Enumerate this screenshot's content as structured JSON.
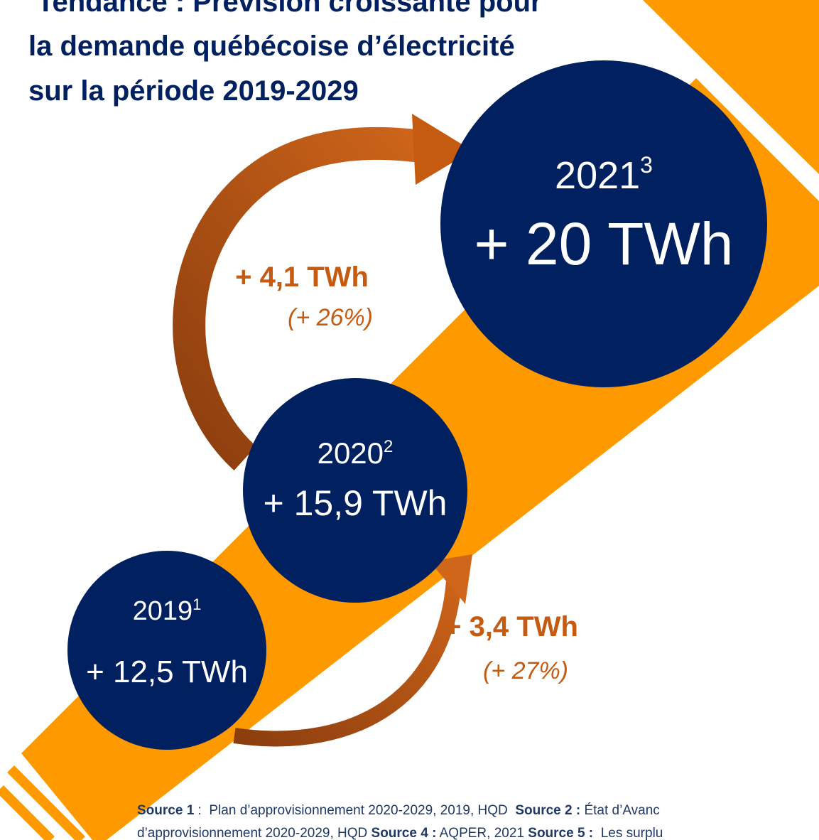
{
  "title": {
    "lines": [
      "Tendance : Prévision croissante pour",
      "la demande québécoise d’électricité",
      "sur la période 2019-2029"
    ]
  },
  "nodes": [
    {
      "year": "2019",
      "note": "1",
      "value": "+ 12,5 TWh"
    },
    {
      "year": "2020",
      "note": "2",
      "value": "+ 15,9 TWh"
    },
    {
      "year": "2021",
      "note": "3",
      "value": "+ 20 TWh"
    }
  ],
  "growth": [
    {
      "amount": "+ 3,4 TWh",
      "percent": "(+ 27%)"
    },
    {
      "amount": "+ 4,1 TWh",
      "percent": "(+ 26%)"
    }
  ],
  "footer": {
    "lines": [
      [
        {
          "text": "Source 1",
          "bold": true
        },
        {
          "text": " :  Plan d’approvisionnement 2020-2029, 2019, HQD  ",
          "bold": false
        },
        {
          "text": "Source 2 :",
          "bold": true
        },
        {
          "text": " État d’Avanc",
          "bold": false
        }
      ],
      [
        {
          "text": "d’approvisionnement 2020-2029, HQD ",
          "bold": false
        },
        {
          "text": "Source 4 :",
          "bold": true
        },
        {
          "text": " AQPER, 2021 ",
          "bold": false
        },
        {
          "text": "Source 5 :",
          "bold": true
        },
        {
          "text": "  Les surplu",
          "bold": false
        }
      ]
    ]
  }
}
